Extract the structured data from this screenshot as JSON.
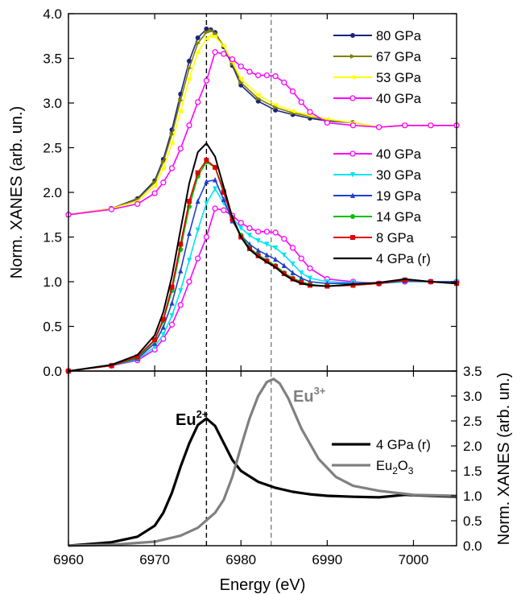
{
  "chart_data": [
    {
      "type": "line",
      "panel": "top",
      "title": "",
      "xlabel": "Energy (eV)",
      "ylabel": "Norm. XANES (arb. un.)",
      "xlim": [
        6960,
        7005
      ],
      "ylim": [
        0,
        4.0
      ],
      "x_ticks": [
        6960,
        6970,
        6980,
        6990,
        7000
      ],
      "y_ticks": [
        "0.0",
        "0.5",
        "1.0",
        "1.5",
        "2.0",
        "2.5",
        "3.0",
        "3.5",
        "4.0"
      ],
      "vlines": [
        6976,
        6983.5
      ],
      "legend_position": "top-right",
      "legend_groups": [
        [
          "80 GPa",
          "67 GPa",
          "53 GPa",
          "40 GPa"
        ],
        [
          "40 GPa",
          "30 GPa",
          "19 GPa",
          "14 GPa",
          "8 GPa",
          "4 GPa (r)"
        ]
      ],
      "series": [
        {
          "name": "80 GPa",
          "color": "#1a237e",
          "marker": "circle",
          "offset": 1.75,
          "x": [
            6960,
            6965,
            6968,
            6970,
            6971,
            6972,
            6973,
            6974,
            6975,
            6976,
            6976.5,
            6977,
            6978,
            6979,
            6980,
            6982,
            6984,
            6986,
            6988,
            6990,
            6993,
            6996,
            6999,
            7002,
            7005
          ],
          "y": [
            0.0,
            0.07,
            0.18,
            0.38,
            0.62,
            0.95,
            1.35,
            1.72,
            1.98,
            2.08,
            2.07,
            2.04,
            1.88,
            1.67,
            1.45,
            1.27,
            1.17,
            1.12,
            1.08,
            1.05,
            1.03,
            0.98,
            1.0,
            1.0,
            1.0
          ]
        },
        {
          "name": "67 GPa",
          "color": "#808000",
          "marker": "triangle-right",
          "offset": 1.75,
          "x": [
            6960,
            6965,
            6968,
            6970,
            6971,
            6972,
            6973,
            6974,
            6975,
            6976,
            6976.5,
            6977,
            6978,
            6979,
            6980,
            6982,
            6984,
            6986,
            6988,
            6990,
            6993,
            6996,
            6999,
            7002,
            7005
          ],
          "y": [
            0.0,
            0.07,
            0.17,
            0.36,
            0.59,
            0.9,
            1.28,
            1.64,
            1.92,
            2.04,
            2.06,
            2.03,
            1.89,
            1.69,
            1.48,
            1.3,
            1.2,
            1.14,
            1.1,
            1.06,
            1.03,
            0.98,
            1.0,
            1.0,
            1.0
          ]
        },
        {
          "name": "53 GPa",
          "color": "#ffff00",
          "marker": "triangle-left",
          "offset": 1.75,
          "x": [
            6960,
            6965,
            6968,
            6970,
            6971,
            6972,
            6973,
            6974,
            6975,
            6976,
            6976.5,
            6977,
            6978,
            6979,
            6980,
            6982,
            6984,
            6986,
            6988,
            6990,
            6993,
            6996,
            6999,
            7002,
            7005
          ],
          "y": [
            0.0,
            0.07,
            0.15,
            0.32,
            0.52,
            0.8,
            1.16,
            1.52,
            1.82,
            1.97,
            2.0,
            1.99,
            1.89,
            1.71,
            1.52,
            1.34,
            1.23,
            1.16,
            1.11,
            1.07,
            1.03,
            0.98,
            1.0,
            1.0,
            1.0
          ]
        },
        {
          "name": "40 GPa",
          "color": "#ff00ff",
          "marker": "circle-open",
          "offset": 1.75,
          "x": [
            6960,
            6965,
            6968,
            6970,
            6971,
            6972,
            6973,
            6974,
            6975,
            6976,
            6977,
            6978,
            6979,
            6980,
            6981,
            6982,
            6983,
            6984,
            6985,
            6986,
            6987,
            6988,
            6990,
            6993,
            6996,
            6999,
            7002,
            7005
          ],
          "y": [
            0.0,
            0.06,
            0.12,
            0.24,
            0.36,
            0.52,
            0.74,
            1.0,
            1.26,
            1.5,
            1.82,
            1.8,
            1.74,
            1.66,
            1.6,
            1.56,
            1.56,
            1.55,
            1.48,
            1.38,
            1.26,
            1.15,
            1.03,
            1.0,
            0.98,
            1.0,
            1.0,
            1.0
          ]
        },
        {
          "name": "40 GPa",
          "color": "#ff00ff",
          "marker": "circle-open",
          "offset": 0,
          "x": [
            6960,
            6965,
            6968,
            6970,
            6971,
            6972,
            6973,
            6974,
            6975,
            6976,
            6977,
            6978,
            6979,
            6980,
            6981,
            6982,
            6983,
            6984,
            6985,
            6986,
            6987,
            6988,
            6990,
            6993,
            6996,
            6999,
            7002,
            7005
          ],
          "y": [
            0.0,
            0.06,
            0.12,
            0.24,
            0.36,
            0.52,
            0.74,
            1.0,
            1.26,
            1.5,
            1.82,
            1.8,
            1.74,
            1.66,
            1.6,
            1.56,
            1.56,
            1.55,
            1.48,
            1.38,
            1.26,
            1.15,
            1.03,
            1.0,
            0.98,
            1.0,
            1.0,
            1.0
          ]
        },
        {
          "name": "30 GPa",
          "color": "#00e5ee",
          "marker": "triangle-down",
          "offset": 0,
          "x": [
            6960,
            6965,
            6968,
            6970,
            6971,
            6972,
            6973,
            6974,
            6975,
            6976,
            6977,
            6978,
            6979,
            6980,
            6981,
            6982,
            6983,
            6984,
            6985,
            6986,
            6987,
            6988,
            6990,
            6993,
            6996,
            6999,
            7002,
            7005
          ],
          "y": [
            0.0,
            0.06,
            0.13,
            0.27,
            0.41,
            0.62,
            0.9,
            1.24,
            1.58,
            1.88,
            2.04,
            1.88,
            1.72,
            1.6,
            1.52,
            1.46,
            1.42,
            1.38,
            1.3,
            1.2,
            1.1,
            1.04,
            1.0,
            0.99,
            0.98,
            1.0,
            1.0,
            1.0
          ]
        },
        {
          "name": "19 GPa",
          "color": "#1f3fcc",
          "marker": "triangle-up",
          "offset": 0,
          "x": [
            6960,
            6965,
            6968,
            6970,
            6971,
            6972,
            6973,
            6974,
            6975,
            6976,
            6977,
            6978,
            6979,
            6980,
            6981,
            6982,
            6983,
            6984,
            6985,
            6986,
            6987,
            6988,
            6990,
            6993,
            6996,
            6999,
            7002,
            7005
          ],
          "y": [
            0.0,
            0.06,
            0.14,
            0.31,
            0.49,
            0.76,
            1.12,
            1.54,
            1.9,
            2.12,
            2.14,
            1.92,
            1.68,
            1.52,
            1.42,
            1.35,
            1.3,
            1.25,
            1.18,
            1.1,
            1.04,
            1.0,
            0.98,
            0.98,
            0.98,
            1.01,
            1.0,
            1.0
          ]
        },
        {
          "name": "14 GPa",
          "color": "#00c000",
          "marker": "circle",
          "offset": 0,
          "x": [
            6960,
            6965,
            6968,
            6970,
            6971,
            6972,
            6973,
            6974,
            6975,
            6976,
            6977,
            6978,
            6979,
            6980,
            6981,
            6982,
            6983,
            6984,
            6985,
            6986,
            6987,
            6988,
            6990,
            6993,
            6996,
            6999,
            7002,
            7005
          ],
          "y": [
            0.0,
            0.06,
            0.15,
            0.34,
            0.56,
            0.9,
            1.36,
            1.84,
            2.18,
            2.34,
            2.28,
            2.02,
            1.72,
            1.52,
            1.38,
            1.3,
            1.24,
            1.18,
            1.1,
            1.04,
            1.0,
            0.97,
            0.95,
            0.96,
            0.98,
            1.02,
            1.0,
            0.98
          ]
        },
        {
          "name": "8 GPa",
          "color": "#e00000",
          "marker": "square",
          "offset": 0,
          "x": [
            6960,
            6965,
            6968,
            6970,
            6971,
            6972,
            6973,
            6974,
            6975,
            6976,
            6977,
            6978,
            6979,
            6980,
            6981,
            6982,
            6983,
            6984,
            6985,
            6986,
            6987,
            6988,
            6990,
            6993,
            6996,
            6999,
            7002,
            7005
          ],
          "y": [
            0.0,
            0.06,
            0.16,
            0.35,
            0.58,
            0.94,
            1.42,
            1.9,
            2.22,
            2.36,
            2.28,
            2.0,
            1.7,
            1.5,
            1.37,
            1.29,
            1.23,
            1.17,
            1.09,
            1.03,
            0.99,
            0.96,
            0.95,
            0.96,
            0.98,
            1.02,
            1.0,
            0.98
          ]
        },
        {
          "name": "4 GPa (r)",
          "color": "#000000",
          "marker": "none",
          "offset": 0,
          "x": [
            6960,
            6965,
            6968,
            6970,
            6971,
            6972,
            6973,
            6974,
            6975,
            6976,
            6977,
            6978,
            6979,
            6980,
            6981,
            6982,
            6983,
            6984,
            6985,
            6986,
            6987,
            6988,
            6990,
            6993,
            6996,
            6999,
            7002,
            7005
          ],
          "y": [
            0.0,
            0.07,
            0.18,
            0.4,
            0.66,
            1.06,
            1.58,
            2.1,
            2.45,
            2.55,
            2.4,
            2.06,
            1.72,
            1.5,
            1.36,
            1.28,
            1.22,
            1.16,
            1.08,
            1.02,
            0.98,
            0.96,
            0.95,
            0.97,
            0.99,
            1.03,
            1.0,
            0.98
          ]
        }
      ]
    },
    {
      "type": "line",
      "panel": "bottom",
      "title": "",
      "xlabel": "Energy (eV)",
      "ylabel": "Norm. XANES (arb. un.)",
      "ylabel_position": "right",
      "xlim": [
        6960,
        7005
      ],
      "ylim": [
        0,
        3.5
      ],
      "x_ticks": [
        6960,
        6970,
        6980,
        6990,
        7000
      ],
      "y_ticks": [
        "0.0",
        "0.5",
        "1.0",
        "1.5",
        "2.0",
        "2.5",
        "3.0",
        "3.5"
      ],
      "vlines": [
        6976,
        6983.5
      ],
      "legend_position": "right",
      "annotations": [
        {
          "base": "Eu",
          "sup": "2+",
          "color": "#000000"
        },
        {
          "base": "Eu",
          "sup": "3+",
          "color": "#808080"
        }
      ],
      "series": [
        {
          "name": "4 GPa (r)",
          "color": "#000000",
          "x": [
            6960,
            6965,
            6968,
            6970,
            6971,
            6972,
            6973,
            6974,
            6975,
            6976,
            6977,
            6978,
            6979,
            6980,
            6982,
            6984,
            6986,
            6988,
            6990,
            6993,
            6996,
            6999,
            7002,
            7005
          ],
          "y": [
            0.0,
            0.07,
            0.18,
            0.4,
            0.66,
            1.06,
            1.58,
            2.05,
            2.42,
            2.55,
            2.4,
            2.06,
            1.72,
            1.5,
            1.28,
            1.16,
            1.08,
            1.03,
            1.0,
            0.98,
            0.97,
            1.02,
            1.0,
            0.98
          ]
        },
        {
          "name": "Eu2O3",
          "label_base": "Eu",
          "label_sub1": "2",
          "label_mid": "O",
          "label_sub2": "3",
          "color": "#808080",
          "x": [
            6960,
            6965,
            6970,
            6973,
            6975,
            6977,
            6978,
            6979,
            6980,
            6981,
            6982,
            6983,
            6983.8,
            6984.5,
            6985.5,
            6987,
            6989,
            6991,
            6993,
            6996,
            7000,
            7005
          ],
          "y": [
            0.0,
            0.02,
            0.08,
            0.2,
            0.36,
            0.66,
            0.92,
            1.38,
            1.98,
            2.55,
            3.0,
            3.28,
            3.34,
            3.25,
            2.95,
            2.35,
            1.74,
            1.38,
            1.2,
            1.1,
            1.02,
            1.0
          ]
        }
      ]
    }
  ]
}
